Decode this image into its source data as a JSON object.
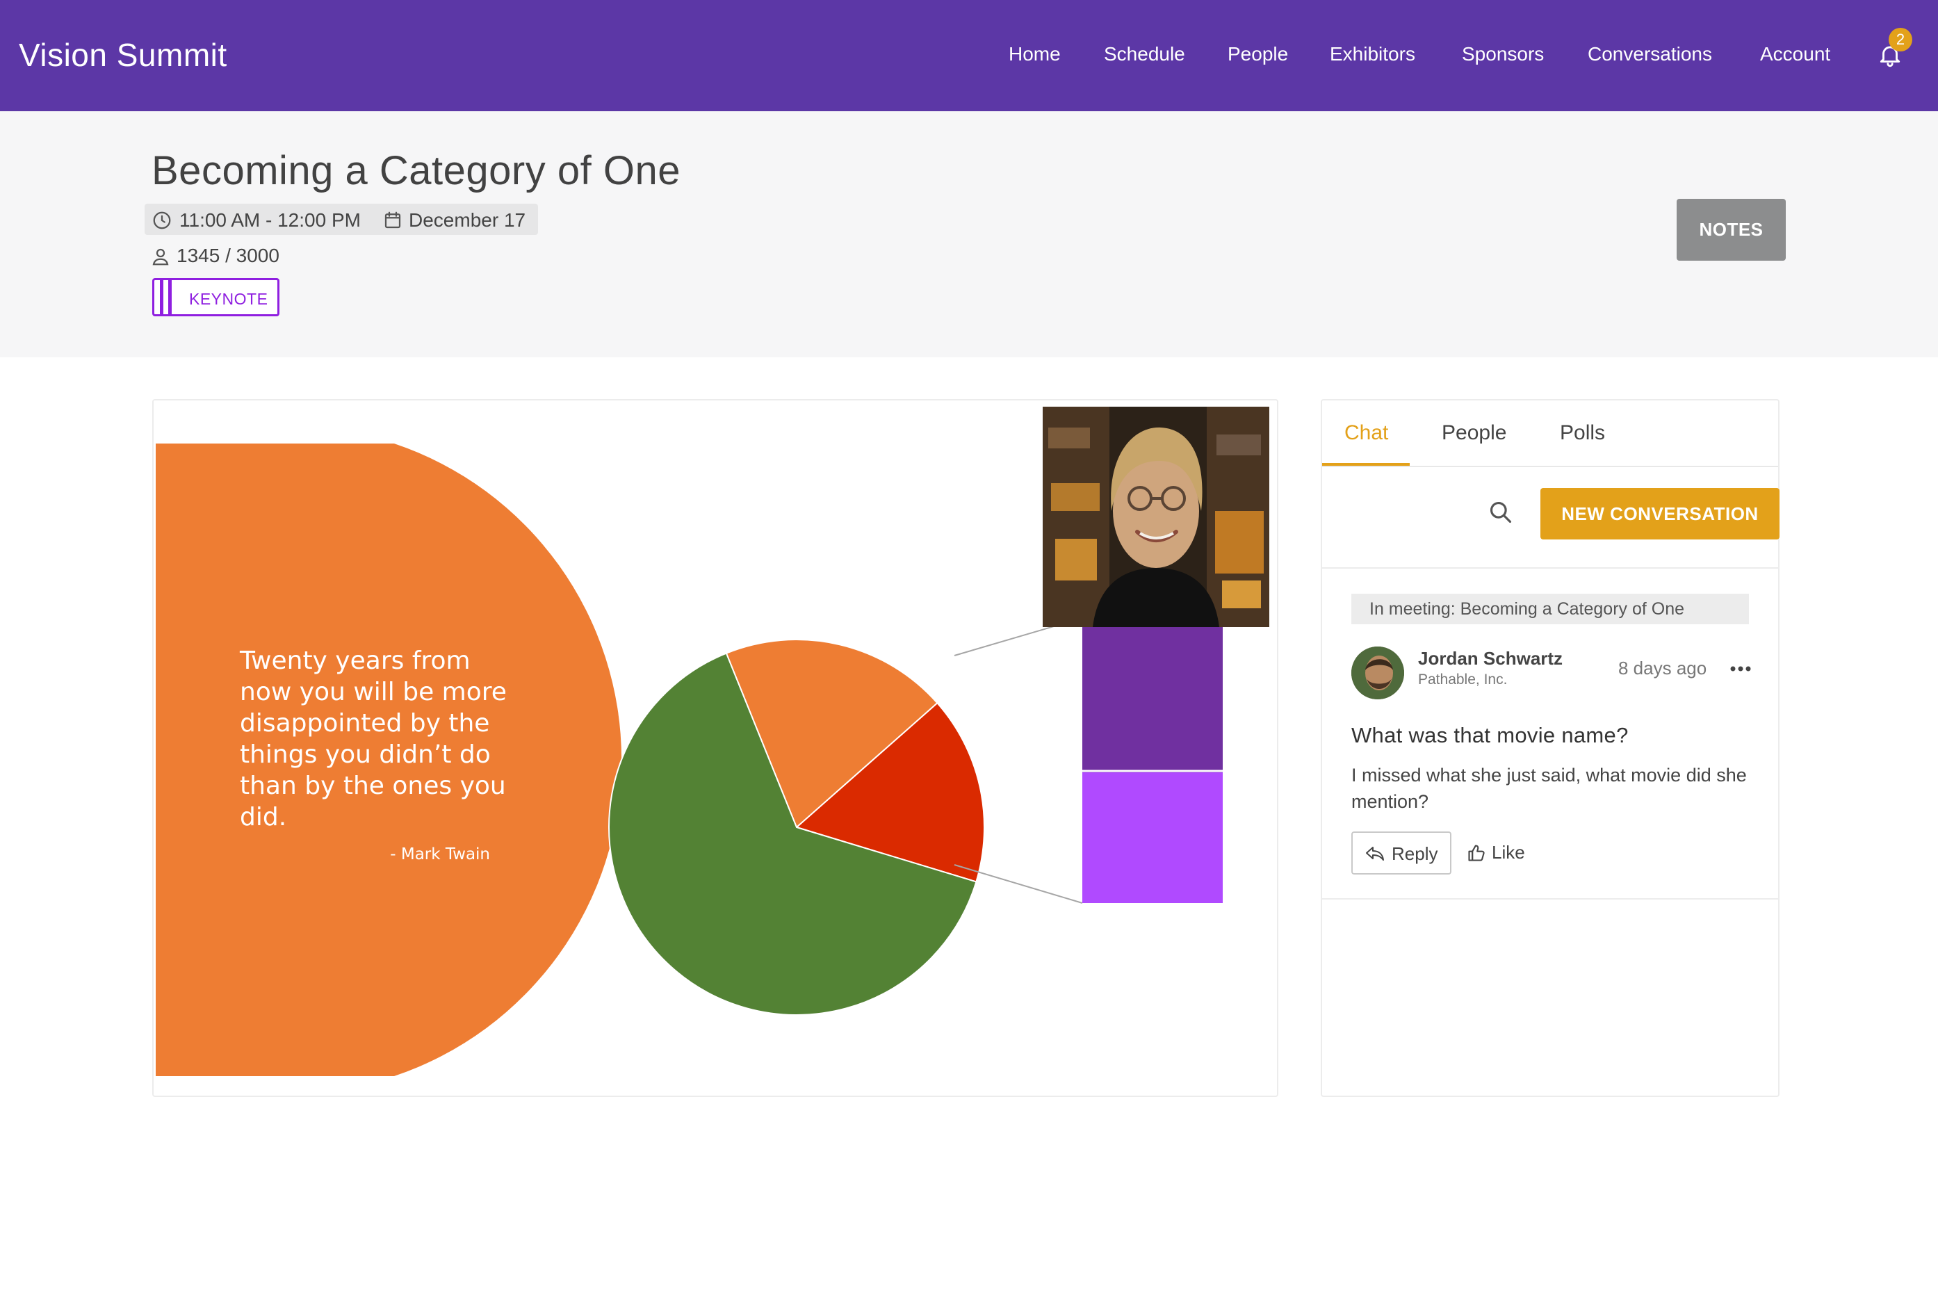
{
  "app": {
    "title": "Vision Summit",
    "brand_color": "#5c37a6",
    "accent_color": "#e3a11a"
  },
  "nav": {
    "items": [
      "Home",
      "Schedule",
      "People",
      "Exhibitors",
      "Sponsors",
      "Conversations",
      "Account"
    ],
    "notifications": {
      "icon": "bell-icon",
      "count": "2"
    }
  },
  "session": {
    "title": "Becoming a Category of One",
    "time": "11:00 AM - 12:00 PM",
    "date": "December 17",
    "capacity": "1345 / 3000",
    "tag": "KEYNOTE",
    "notes_label": "NOTES"
  },
  "slide": {
    "quote": "Twenty years from now you will be more disappointed by the things you didn’t do than by the ones you did.",
    "author": "- Mark Twain",
    "pie_colors": [
      "#ee7d33",
      "#da2a00",
      "#538234"
    ],
    "pie_proportions": [
      0.196,
      0.162,
      0.642
    ],
    "breakout_colors": [
      "#7030a0",
      "#b04aff"
    ]
  },
  "panel": {
    "tabs": [
      {
        "label": "Chat",
        "active": true
      },
      {
        "label": "People",
        "active": false
      },
      {
        "label": "Polls",
        "active": false
      }
    ],
    "new_conversation_label": "NEW CONVERSATION",
    "post": {
      "context": "In meeting: Becoming a Category of One",
      "author": "Jordan Schwartz",
      "org": "Pathable, Inc.",
      "time": "8 days ago",
      "title": "What was that movie name?",
      "body": "I missed what she just said, what movie did she mention?",
      "reply_label": "Reply",
      "like_label": "Like"
    }
  }
}
